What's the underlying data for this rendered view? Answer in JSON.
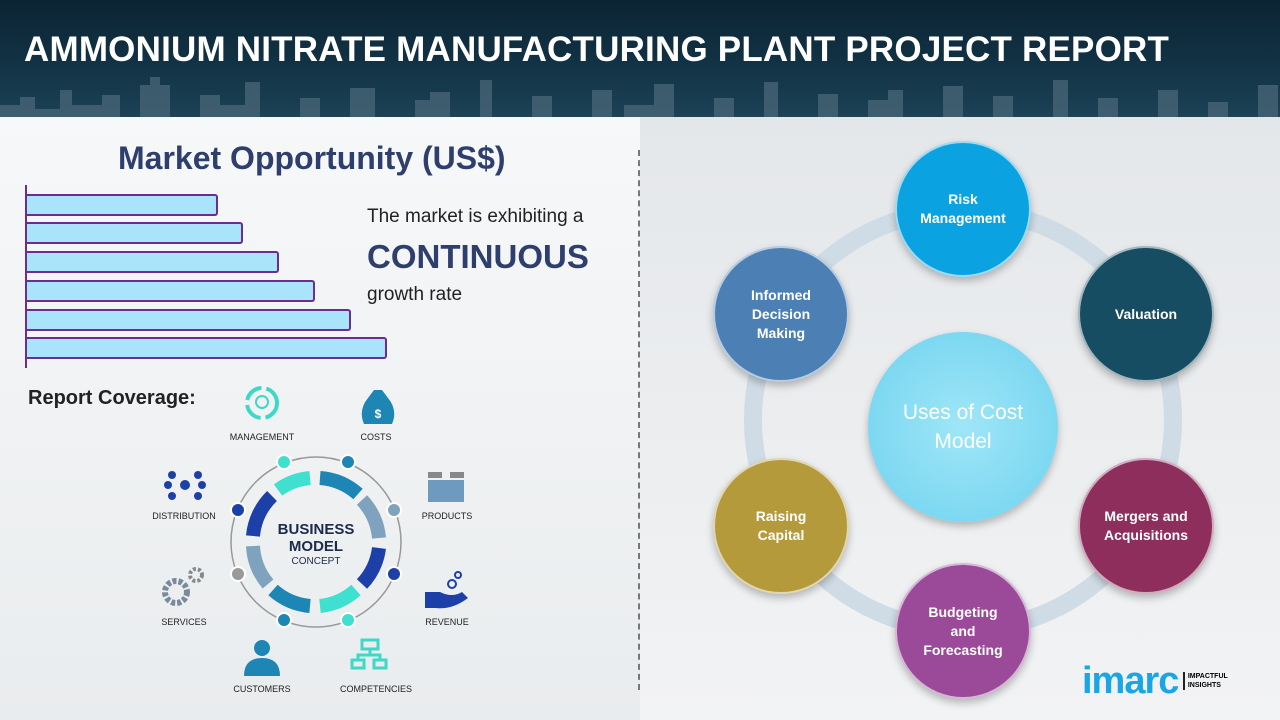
{
  "header": {
    "title": "AMMONIUM NITRATE MANUFACTURING PLANT PROJECT REPORT"
  },
  "market": {
    "title": "Market Opportunity (US$)",
    "bar_relative_lengths": [
      0.53,
      0.6,
      0.7,
      0.8,
      0.9,
      1.0
    ],
    "bar_fill": "#a9e4fb",
    "bar_border": "#6b2d8f",
    "line1": "The market is exhibiting a",
    "line2": "CONTINUOUS",
    "line3": "growth rate"
  },
  "coverage": {
    "title": "Report Coverage:",
    "center_line1": "BUSINESS",
    "center_line2": "MODEL",
    "center_line3": "CONCEPT",
    "items": [
      "MANAGEMENT",
      "COSTS",
      "PRODUCTS",
      "REVENUE",
      "COMPETENCIES",
      "CUSTOMERS",
      "SERVICES",
      "DISTRIBUTION"
    ]
  },
  "uses": {
    "center": "Uses of Cost Model",
    "items": [
      {
        "label": "Risk Management",
        "color": "#0ba2e2"
      },
      {
        "label": "Valuation",
        "color": "#164d62"
      },
      {
        "label": "Mergers and Acquisitions",
        "color": "#8d2e5d"
      },
      {
        "label": "Budgeting and Forecasting",
        "color": "#9a4a98"
      },
      {
        "label": "Raising Capital",
        "color": "#b59a3c"
      },
      {
        "label": "Informed Decision Making",
        "color": "#4c80b4"
      }
    ]
  },
  "logo": {
    "brand": "imarc",
    "tagline1": "IMPACTFUL",
    "tagline2": "INSIGHTS",
    "color": "#1aa6e4"
  }
}
